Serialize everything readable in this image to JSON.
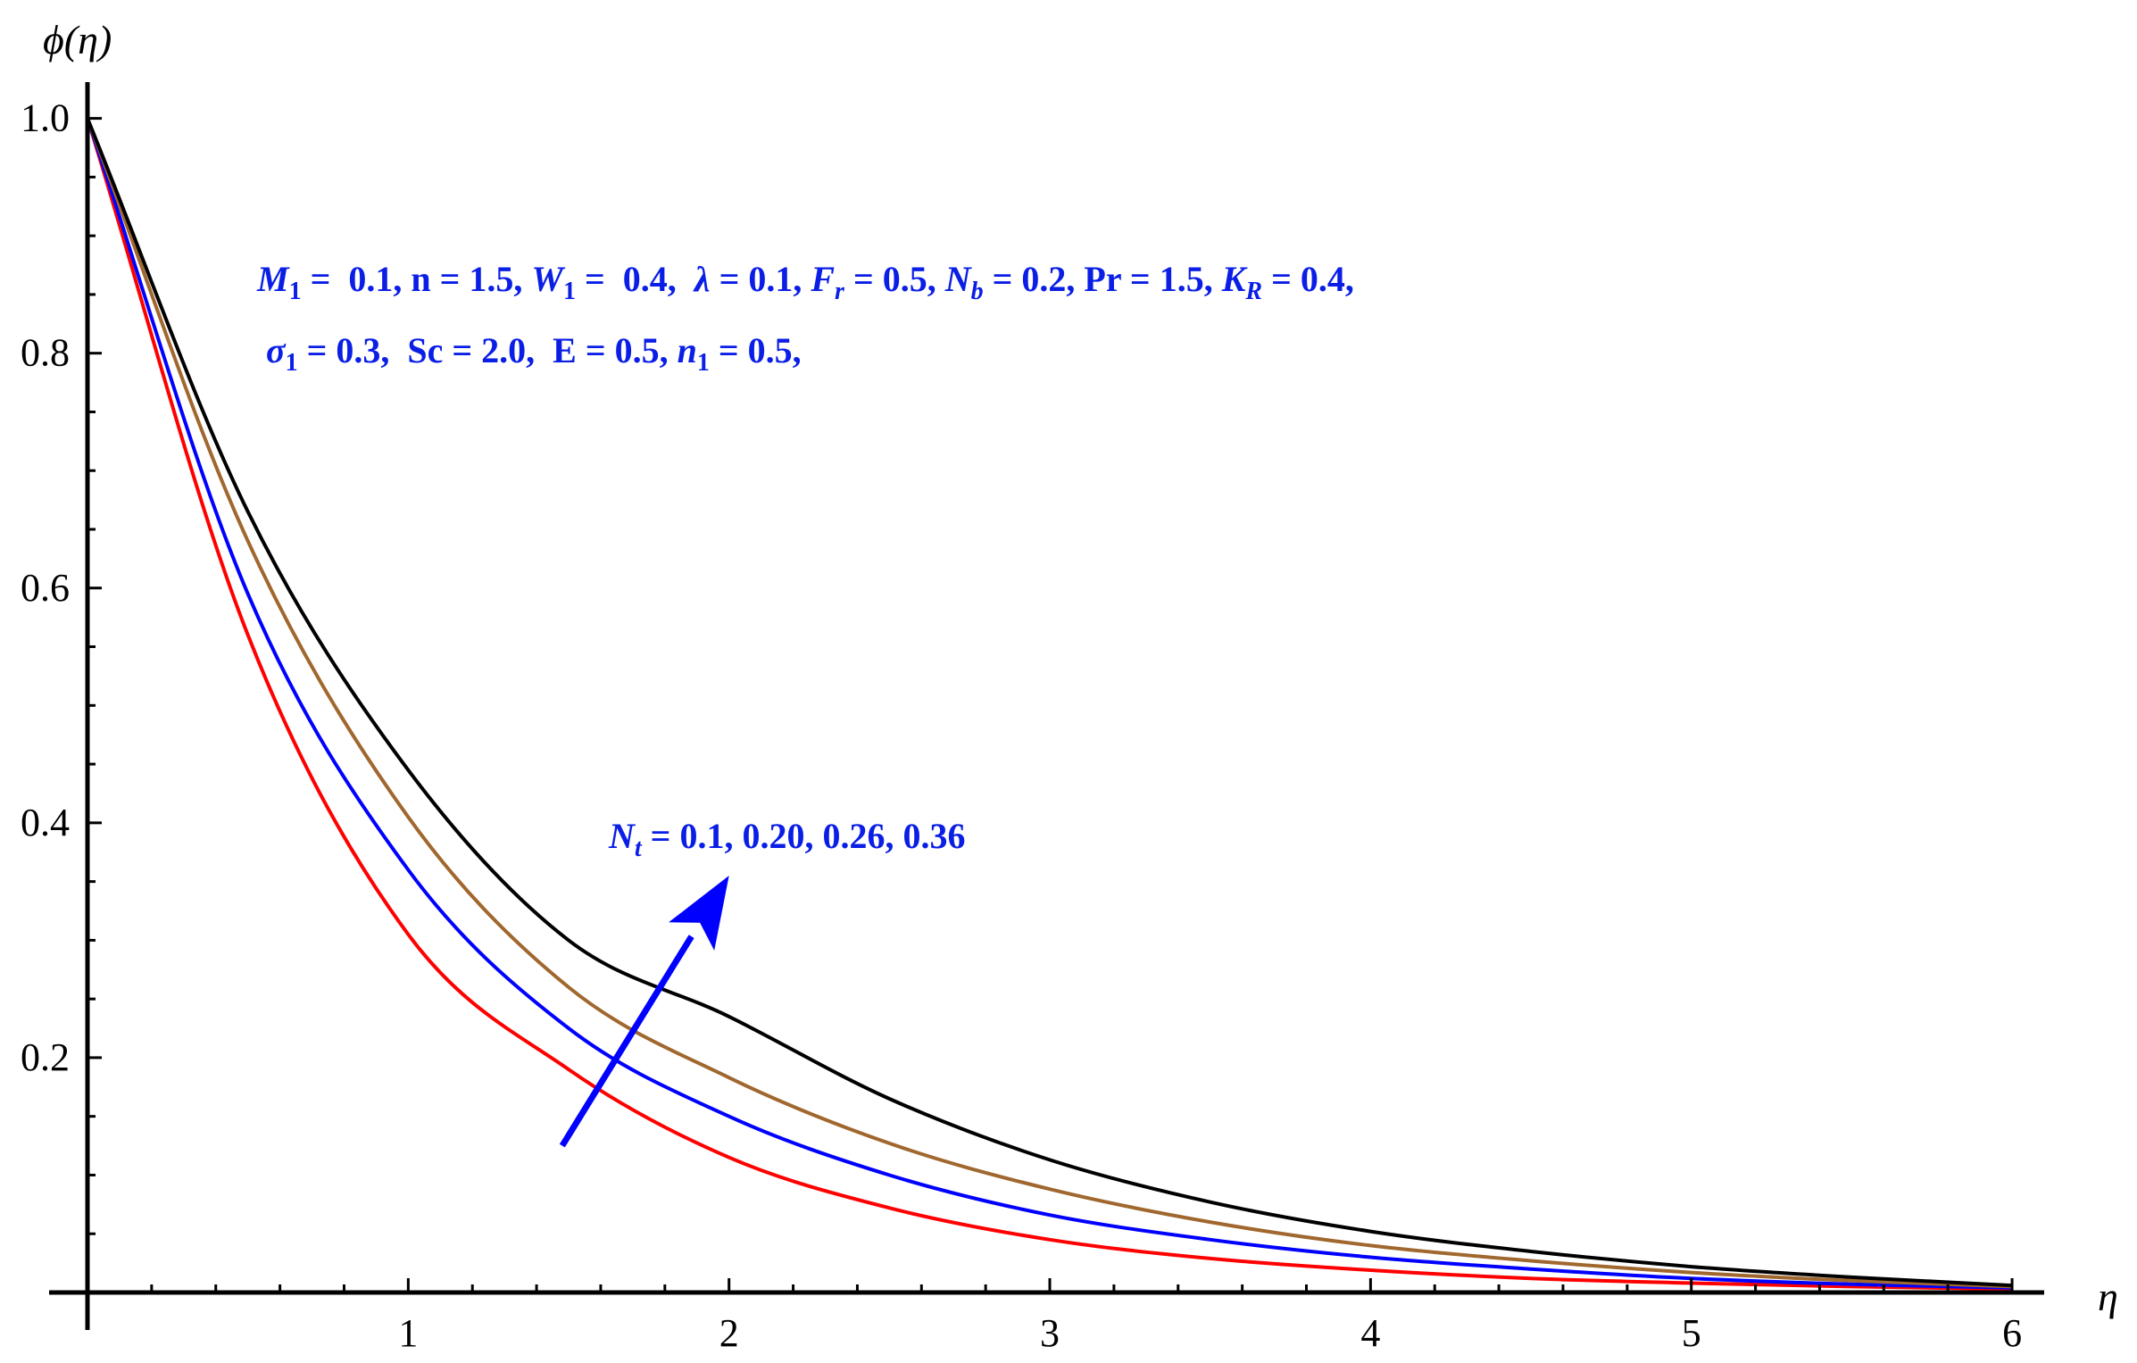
{
  "chart_data": {
    "type": "line",
    "title": "",
    "xlabel": "η",
    "ylabel": "ϕ(η)",
    "xlim": [
      0,
      6.1
    ],
    "ylim": [
      0,
      1.04
    ],
    "x_ticks": [
      1,
      2,
      3,
      4,
      5,
      6
    ],
    "y_ticks": [
      0.2,
      0.4,
      0.6,
      0.8,
      1.0
    ],
    "x_tick_labels": [
      "1",
      "2",
      "3",
      "4",
      "5",
      "6"
    ],
    "y_tick_labels": [
      "0.2",
      "0.4",
      "0.6",
      "0.8",
      "1.0"
    ],
    "grid": false,
    "x": [
      0,
      0.5,
      1,
      1.5,
      2,
      2.5,
      3,
      3.5,
      4,
      4.5,
      5,
      5.5,
      6
    ],
    "series": [
      {
        "color": "#ff0000",
        "values": [
          1.0,
          0.56,
          0.305,
          0.19,
          0.115,
          0.072,
          0.045,
          0.029,
          0.019,
          0.012,
          0.008,
          0.005,
          0.003
        ]
      },
      {
        "color": "#0000ff",
        "values": [
          1.0,
          0.595,
          0.36,
          0.225,
          0.15,
          0.1,
          0.066,
          0.045,
          0.03,
          0.02,
          0.012,
          0.007,
          0.004
        ]
      },
      {
        "color": "#a0672e",
        "values": [
          1.0,
          0.64,
          0.405,
          0.26,
          0.183,
          0.127,
          0.088,
          0.06,
          0.04,
          0.027,
          0.017,
          0.01,
          0.005
        ]
      },
      {
        "color": "#000000",
        "values": [
          1.0,
          0.665,
          0.445,
          0.3,
          0.235,
          0.165,
          0.113,
          0.077,
          0.052,
          0.035,
          0.022,
          0.013,
          0.006
        ]
      }
    ],
    "annotations": {
      "params_line1": [
        {
          "t": "M",
          "i": true
        },
        {
          "t": "1",
          "sub": true
        },
        {
          "t": " =  0.1, n = 1.5, "
        },
        {
          "t": "W",
          "i": true
        },
        {
          "t": "1",
          "sub": true
        },
        {
          "t": " =  0.4,  "
        },
        {
          "t": "λ",
          "i": true
        },
        {
          "t": " = 0.1, "
        },
        {
          "t": "F",
          "i": true
        },
        {
          "t": "r",
          "sub": true,
          "i": true
        },
        {
          "t": " = 0.5, "
        },
        {
          "t": "N",
          "i": true
        },
        {
          "t": "b",
          "sub": true,
          "i": true
        },
        {
          "t": " = 0.2, Pr = 1.5, "
        },
        {
          "t": "K",
          "i": true
        },
        {
          "t": "R",
          "sub": true,
          "i": true
        },
        {
          "t": " = 0.4,"
        }
      ],
      "params_line2": [
        {
          "t": "σ",
          "i": true
        },
        {
          "t": "1",
          "sub": true
        },
        {
          "t": " = 0.3,  Sc = 2.0,  E = 0.5, "
        },
        {
          "t": "n",
          "i": true
        },
        {
          "t": "1",
          "sub": true
        },
        {
          "t": " = 0.5,"
        }
      ],
      "nt_label": [
        {
          "t": "N",
          "i": true
        },
        {
          "t": "t",
          "sub": true,
          "i": true
        },
        {
          "t": " = 0.1, 0.20, 0.26, 0.36"
        }
      ],
      "arrow": {
        "from": [
          1.48,
          0.125
        ],
        "to": [
          2.0,
          0.355
        ],
        "color": "#0000ff"
      }
    }
  }
}
